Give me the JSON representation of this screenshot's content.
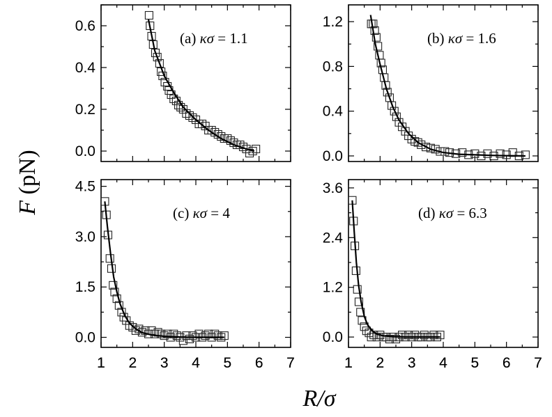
{
  "figure": {
    "ylabel_var": "F",
    "ylabel_unit": " (pN)",
    "xlabel_var": "R",
    "xlabel_rest": "/σ"
  },
  "chart_data": [
    {
      "type": "scatter",
      "label_prefix": "(a) ",
      "label_symbol": "κσ",
      "label_value": " = 1.1",
      "xlim": [
        1,
        7
      ],
      "ylim": [
        -0.05,
        0.7
      ],
      "x_ticks": [
        "1",
        "2",
        "3",
        "4",
        "5",
        "6",
        "7"
      ],
      "y_ticks": [
        0,
        0.2,
        0.4,
        0.6
      ],
      "y_tick_labels": [
        "0.0",
        "0.2",
        "0.4",
        "0.6"
      ],
      "fit_curve": {
        "x": [
          2.5,
          2.7,
          3.0,
          3.3,
          3.6,
          4.0,
          4.4,
          4.8,
          5.2,
          5.6,
          5.85
        ],
        "y": [
          0.63,
          0.48,
          0.36,
          0.28,
          0.21,
          0.15,
          0.1,
          0.06,
          0.03,
          0.01,
          0.0
        ]
      },
      "points": {
        "x": [
          2.52,
          2.55,
          2.6,
          2.65,
          2.72,
          2.78,
          2.85,
          2.9,
          2.95,
          3.02,
          3.1,
          3.15,
          3.22,
          3.3,
          3.38,
          3.45,
          3.52,
          3.6,
          3.7,
          3.8,
          3.9,
          4.0,
          4.1,
          4.2,
          4.3,
          4.4,
          4.5,
          4.6,
          4.7,
          4.8,
          4.9,
          5.0,
          5.1,
          5.2,
          5.3,
          5.4,
          5.5,
          5.6,
          5.7,
          5.8,
          5.9
        ],
        "y": [
          0.65,
          0.6,
          0.55,
          0.51,
          0.47,
          0.45,
          0.42,
          0.38,
          0.36,
          0.33,
          0.31,
          0.29,
          0.27,
          0.25,
          0.24,
          0.22,
          0.21,
          0.2,
          0.18,
          0.17,
          0.16,
          0.15,
          0.13,
          0.13,
          0.12,
          0.1,
          0.1,
          0.09,
          0.08,
          0.07,
          0.06,
          0.06,
          0.05,
          0.04,
          0.03,
          0.03,
          0.02,
          0.01,
          -0.01,
          0.0,
          0.01
        ]
      }
    },
    {
      "type": "scatter",
      "label_prefix": "(b) ",
      "label_symbol": "κσ",
      "label_value": " = 1.6",
      "xlim": [
        1,
        7
      ],
      "ylim": [
        -0.05,
        1.35
      ],
      "x_ticks": [
        "1",
        "2",
        "3",
        "4",
        "5",
        "6",
        "7"
      ],
      "y_ticks": [
        0,
        0.4,
        0.8,
        1.2
      ],
      "y_tick_labels": [
        "0.0",
        "0.4",
        "0.8",
        "1.2"
      ],
      "fit_curve": {
        "x": [
          1.7,
          1.85,
          2.0,
          2.2,
          2.4,
          2.6,
          2.9,
          3.2,
          3.6,
          4.0,
          4.5,
          5.0,
          5.5,
          6.0,
          6.6
        ],
        "y": [
          1.26,
          1.0,
          0.82,
          0.6,
          0.44,
          0.32,
          0.2,
          0.12,
          0.06,
          0.03,
          0.015,
          0.01,
          0.005,
          0.002,
          0.0
        ]
      },
      "points": {
        "x": [
          1.72,
          1.78,
          1.83,
          1.88,
          1.93,
          1.98,
          2.03,
          2.08,
          2.13,
          2.18,
          2.23,
          2.3,
          2.37,
          2.45,
          2.52,
          2.6,
          2.7,
          2.8,
          2.9,
          3.0,
          3.1,
          3.2,
          3.3,
          3.45,
          3.6,
          3.75,
          3.9,
          4.05,
          4.2,
          4.4,
          4.6,
          4.8,
          5.0,
          5.2,
          5.4,
          5.6,
          5.8,
          6.0,
          6.2,
          6.4,
          6.6
        ],
        "y": [
          1.18,
          1.18,
          1.12,
          1.06,
          0.98,
          0.9,
          0.83,
          0.77,
          0.7,
          0.63,
          0.57,
          0.52,
          0.45,
          0.4,
          0.35,
          0.3,
          0.26,
          0.22,
          0.18,
          0.15,
          0.13,
          0.12,
          0.1,
          0.08,
          0.07,
          0.06,
          0.04,
          0.04,
          0.03,
          0.02,
          0.03,
          0.01,
          0.02,
          0.0,
          0.02,
          0.0,
          0.02,
          0.01,
          0.03,
          0.0,
          0.01
        ]
      }
    },
    {
      "type": "scatter",
      "label_prefix": "(c) ",
      "label_symbol": "κσ",
      "label_value": " = 4",
      "xlim": [
        1,
        7
      ],
      "ylim": [
        -0.3,
        4.7
      ],
      "x_ticks": [
        "1",
        "2",
        "3",
        "4",
        "5",
        "6",
        "7"
      ],
      "y_ticks": [
        0,
        1.5,
        3.0,
        4.5
      ],
      "y_tick_labels": [
        "0.0",
        "1.5",
        "3.0",
        "4.5"
      ],
      "fit_curve": {
        "x": [
          1.12,
          1.2,
          1.3,
          1.4,
          1.5,
          1.6,
          1.75,
          1.9,
          2.1,
          2.3,
          2.6,
          3.0,
          3.5,
          4.0,
          4.9
        ],
        "y": [
          4.05,
          3.3,
          2.5,
          1.8,
          1.35,
          1.0,
          0.65,
          0.42,
          0.25,
          0.14,
          0.07,
          0.03,
          0.01,
          0.0,
          0.0
        ]
      },
      "points": {
        "x": [
          1.12,
          1.17,
          1.22,
          1.28,
          1.33,
          1.38,
          1.43,
          1.5,
          1.57,
          1.65,
          1.72,
          1.8,
          1.9,
          2.0,
          2.1,
          2.2,
          2.3,
          2.4,
          2.5,
          2.6,
          2.7,
          2.8,
          2.9,
          3.0,
          3.1,
          3.2,
          3.3,
          3.4,
          3.5,
          3.6,
          3.7,
          3.8,
          3.9,
          4.0,
          4.1,
          4.2,
          4.3,
          4.4,
          4.5,
          4.6,
          4.7,
          4.8,
          4.9
        ],
        "y": [
          4.05,
          3.65,
          3.05,
          2.35,
          2.05,
          1.55,
          1.35,
          1.15,
          0.95,
          0.75,
          0.6,
          0.5,
          0.35,
          0.3,
          0.2,
          0.25,
          0.15,
          0.2,
          0.1,
          0.2,
          0.1,
          0.15,
          0.1,
          0.05,
          0.1,
          0.0,
          0.1,
          0.05,
          0.0,
          -0.1,
          0.05,
          -0.05,
          0.05,
          0.0,
          0.1,
          0.0,
          0.05,
          0.1,
          0.0,
          0.1,
          0.05,
          0.0,
          0.05
        ]
      }
    },
    {
      "type": "scatter",
      "label_prefix": "(d) ",
      "label_symbol": "κσ",
      "label_value": " = 6.3",
      "xlim": [
        1,
        7
      ],
      "ylim": [
        -0.25,
        3.8
      ],
      "x_ticks": [
        "1",
        "2",
        "3",
        "4",
        "5",
        "6",
        "7"
      ],
      "y_ticks": [
        0,
        1.2,
        2.4,
        3.6
      ],
      "y_tick_labels": [
        "0.0",
        "1.2",
        "2.4",
        "3.6"
      ],
      "fit_curve": {
        "x": [
          1.12,
          1.18,
          1.25,
          1.32,
          1.4,
          1.5,
          1.6,
          1.75,
          1.9,
          2.1,
          2.4,
          2.8,
          3.2,
          3.6,
          3.9
        ],
        "y": [
          3.3,
          2.55,
          1.8,
          1.25,
          0.85,
          0.5,
          0.3,
          0.15,
          0.07,
          0.03,
          0.01,
          0.0,
          0.0,
          0.0,
          0.0
        ]
      },
      "points": {
        "x": [
          1.12,
          1.16,
          1.2,
          1.24,
          1.28,
          1.33,
          1.38,
          1.43,
          1.5,
          1.57,
          1.65,
          1.72,
          1.8,
          1.9,
          2.0,
          2.1,
          2.2,
          2.3,
          2.4,
          2.5,
          2.6,
          2.7,
          2.8,
          2.9,
          3.0,
          3.1,
          3.2,
          3.3,
          3.4,
          3.5,
          3.6,
          3.7,
          3.8,
          3.9
        ],
        "y": [
          3.3,
          2.8,
          2.2,
          1.6,
          1.15,
          0.85,
          0.6,
          0.4,
          0.25,
          0.15,
          0.1,
          0.0,
          0.05,
          0.0,
          0.05,
          0.0,
          0.0,
          -0.05,
          0.0,
          -0.05,
          0.0,
          0.05,
          0.0,
          0.05,
          0.0,
          0.05,
          0.0,
          0.0,
          0.05,
          0.0,
          0.0,
          0.05,
          0.0,
          0.05
        ]
      }
    }
  ]
}
